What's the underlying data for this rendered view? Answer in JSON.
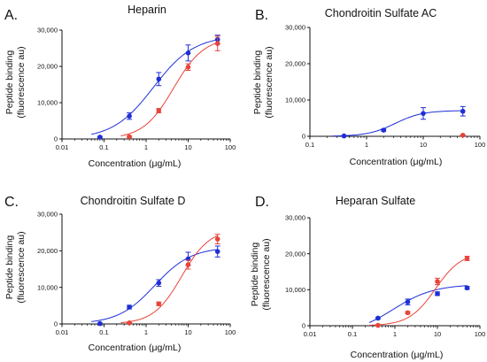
{
  "colors": {
    "blue": "#1f2fd6",
    "red": "#e8443a",
    "axis": "#111111"
  },
  "chart_data": [
    {
      "type": "scatter",
      "panel_letter": "A.",
      "title": "Heparin",
      "xlabel": "Concentration (μg/mL)",
      "ylabel": [
        "Peptide binding",
        "(fluorescence au)"
      ],
      "x_scale": "log",
      "xlim": [
        0.01,
        100
      ],
      "xticks": [
        0.01,
        0.1,
        1,
        10,
        100
      ],
      "xtick_labels": [
        "0.01",
        "0.1",
        "1",
        "10",
        "100"
      ],
      "ylim": [
        0,
        30000
      ],
      "yticks": [
        0,
        10000,
        20000,
        30000
      ],
      "ytick_labels": [
        "0",
        "10,000",
        "20,000",
        "30,000"
      ],
      "grid": false,
      "series": [
        {
          "color": "#1f2fd6",
          "x": [
            0.08,
            0.4,
            2,
            10,
            50
          ],
          "y": [
            500,
            6300,
            16500,
            23700,
            27400
          ],
          "err": [
            200,
            900,
            1800,
            2200,
            1200
          ],
          "fit": {
            "bottom": 0,
            "top": 28500,
            "ec50": 1.5,
            "hill": 0.9
          }
        },
        {
          "color": "#e8443a",
          "x": [
            0.4,
            2,
            10,
            50
          ],
          "y": [
            600,
            7800,
            19800,
            26300
          ],
          "err": [
            200,
            600,
            900,
            2000
          ],
          "fit": {
            "bottom": 0,
            "top": 28000,
            "ec50": 4.5,
            "hill": 1.2
          }
        }
      ]
    },
    {
      "type": "scatter",
      "panel_letter": "B.",
      "title": "Chondroitin Sulfate AC",
      "xlabel": "Concentration (μg/mL)",
      "ylabel": [
        "Peptide binding",
        "(fluorescence au)"
      ],
      "x_scale": "log",
      "xlim": [
        0.1,
        100
      ],
      "xticks": [
        0.1,
        1,
        10,
        100
      ],
      "xtick_labels": [
        "0.1",
        "1",
        "10",
        "100"
      ],
      "ylim": [
        0,
        30000
      ],
      "yticks": [
        0,
        10000,
        20000,
        30000
      ],
      "ytick_labels": [
        "0",
        "10,000",
        "20,000",
        "30,000"
      ],
      "grid": false,
      "series": [
        {
          "color": "#1f2fd6",
          "x": [
            0.4,
            2,
            10,
            50
          ],
          "y": [
            100,
            1700,
            6300,
            6900
          ],
          "err": [
            100,
            300,
            1600,
            1300
          ],
          "fit": {
            "bottom": 0,
            "top": 7100,
            "ec50": 3.2,
            "hill": 1.8
          }
        },
        {
          "color": "#e8443a",
          "x": [
            50
          ],
          "y": [
            300
          ],
          "err": [
            100
          ],
          "fit": null
        }
      ]
    },
    {
      "type": "scatter",
      "panel_letter": "C.",
      "title": "Chondroitin Sulfate D",
      "xlabel": "Concentration (μg/mL)",
      "ylabel": [
        "Peptide binding",
        "(fluorescence au)"
      ],
      "x_scale": "log",
      "xlim": [
        0.01,
        100
      ],
      "xticks": [
        0.01,
        0.1,
        1,
        10,
        100
      ],
      "xtick_labels": [
        "0.01",
        "0.1",
        "1",
        "10",
        "100"
      ],
      "ylim": [
        0,
        30000
      ],
      "yticks": [
        0,
        10000,
        20000,
        30000
      ],
      "ytick_labels": [
        "0",
        "10,000",
        "20,000",
        "30,000"
      ],
      "grid": false,
      "series": [
        {
          "color": "#1f2fd6",
          "x": [
            0.08,
            0.4,
            2,
            10,
            50
          ],
          "y": [
            100,
            4600,
            11200,
            17800,
            19800
          ],
          "err": [
            100,
            500,
            900,
            1800,
            1500
          ],
          "fit": {
            "bottom": 0,
            "top": 21000,
            "ec50": 1.6,
            "hill": 1.0
          }
        },
        {
          "color": "#e8443a",
          "x": [
            0.4,
            2,
            10,
            50
          ],
          "y": [
            300,
            5500,
            16200,
            23200
          ],
          "err": [
            100,
            500,
            1200,
            1300
          ],
          "fit": {
            "bottom": 0,
            "top": 26000,
            "ec50": 7.0,
            "hill": 1.3
          }
        }
      ]
    },
    {
      "type": "scatter",
      "panel_letter": "D.",
      "title": "Heparan Sulfate",
      "xlabel": "Concentration (μg/mL)",
      "ylabel": [
        "Peptide binding",
        "(fluorescence au)"
      ],
      "x_scale": "log",
      "xlim": [
        0.01,
        100
      ],
      "xticks": [
        0.01,
        0.1,
        1,
        10,
        100
      ],
      "xtick_labels": [
        "0.01",
        "0.1",
        "1",
        "10",
        "100"
      ],
      "ylim": [
        0,
        30000
      ],
      "yticks": [
        0,
        10000,
        20000,
        30000
      ],
      "ytick_labels": [
        "0",
        "10,000",
        "20,000",
        "30,000"
      ],
      "grid": false,
      "series": [
        {
          "color": "#1f2fd6",
          "x": [
            0.4,
            2,
            10,
            50
          ],
          "y": [
            2100,
            6600,
            8900,
            10500
          ],
          "err": [
            200,
            800,
            500,
            400
          ],
          "fit": {
            "bottom": -2500,
            "top": 11500,
            "ec50": 0.9,
            "hill": 0.9
          }
        },
        {
          "color": "#e8443a",
          "x": [
            0.4,
            2,
            10,
            50
          ],
          "y": [
            100,
            3600,
            12300,
            18700
          ],
          "err": [
            100,
            300,
            900,
            600
          ],
          "fit": {
            "bottom": 0,
            "top": 20500,
            "ec50": 9.0,
            "hill": 1.4
          }
        }
      ]
    }
  ]
}
